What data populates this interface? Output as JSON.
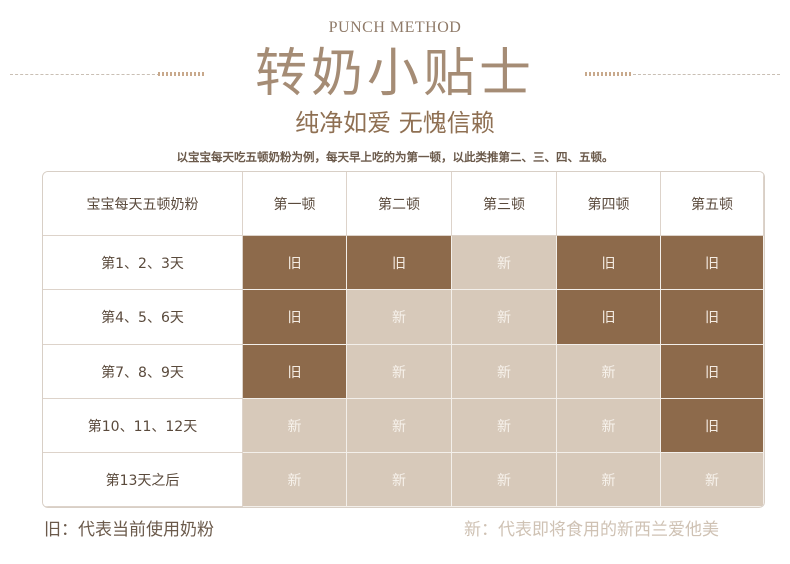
{
  "header": {
    "eyebrow": "PUNCH METHOD",
    "title": "转奶小贴士",
    "subtitle": "纯净如爱 无愧信赖",
    "note": "以宝宝每天吃五顿奶粉为例，每天早上吃的为第一顿，以此类推第二、三、四、五顿。"
  },
  "table": {
    "corner_label": "宝宝每天五顿奶粉",
    "columns": [
      "第一顿",
      "第二顿",
      "第三顿",
      "第四顿",
      "第五顿"
    ],
    "rows": [
      {
        "label": "第1、2、3天",
        "cells": [
          "旧",
          "旧",
          "新",
          "旧",
          "旧"
        ]
      },
      {
        "label": "第4、5、6天",
        "cells": [
          "旧",
          "新",
          "新",
          "旧",
          "旧"
        ]
      },
      {
        "label": "第7、8、9天",
        "cells": [
          "旧",
          "新",
          "新",
          "新",
          "旧"
        ]
      },
      {
        "label": "第10、11、12天",
        "cells": [
          "新",
          "新",
          "新",
          "新",
          "旧"
        ]
      },
      {
        "label": "第13天之后",
        "cells": [
          "新",
          "新",
          "新",
          "新",
          "新"
        ]
      }
    ]
  },
  "legend": {
    "old": "旧：代表当前使用奶粉",
    "new": "新：代表即将食用的新西兰爱他美"
  },
  "colors": {
    "old_cell": "#8d6a4b",
    "new_cell": "#d7c9ba",
    "accent": "#a58c75"
  }
}
